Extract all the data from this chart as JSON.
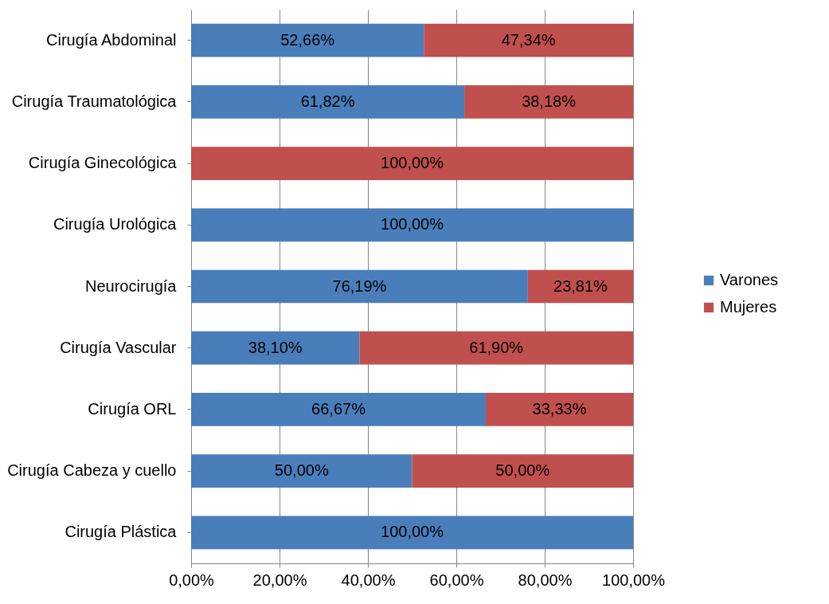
{
  "chart_data": {
    "type": "bar",
    "orientation": "horizontal",
    "stacked": true,
    "categories": [
      "Cirugía Abdominal",
      "Cirugía Traumatológica",
      "Cirugía Ginecológica",
      "Cirugía Urológica",
      "Neurocirugía",
      "Cirugía Vascular",
      "Cirugía ORL",
      "Cirugía Cabeza y cuello",
      "Cirugía Plástica"
    ],
    "series": [
      {
        "name": "Varones",
        "color": "#4a7ebb",
        "values": [
          52.66,
          61.82,
          0,
          100,
          76.19,
          38.1,
          66.67,
          50.0,
          100
        ],
        "value_labels": [
          "52,66%",
          "61,82%",
          null,
          "100,00%",
          "76,19%",
          "38,10%",
          "66,67%",
          "50,00%",
          "100,00%"
        ]
      },
      {
        "name": "Mujeres",
        "color": "#c0504d",
        "values": [
          47.34,
          38.18,
          100,
          0,
          23.81,
          61.9,
          33.33,
          50.0,
          0
        ],
        "value_labels": [
          "47,34%",
          "38,18%",
          "100,00%",
          null,
          "23,81%",
          "61,90%",
          "33,33%",
          "50,00%",
          null
        ]
      }
    ],
    "xlim": [
      0,
      100
    ],
    "xticks": [
      {
        "value": 0,
        "label": "0,00%"
      },
      {
        "value": 20,
        "label": "20,00%"
      },
      {
        "value": 40,
        "label": "40,00%"
      },
      {
        "value": 60,
        "label": "60,00%"
      },
      {
        "value": 80,
        "label": "80,00%"
      },
      {
        "value": 100,
        "label": "100,00%"
      }
    ],
    "grid": "x",
    "legend": "right"
  }
}
